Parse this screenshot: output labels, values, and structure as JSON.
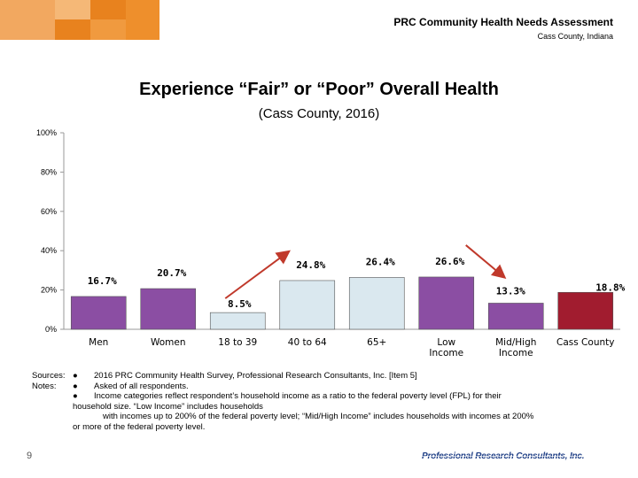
{
  "header": {
    "title": "PRC Community Health Needs Assessment",
    "subtitle": "Cass County, Indiana"
  },
  "colors": {
    "orange_accent": "#e8821e",
    "purple": "#8b4ea3",
    "light_blue": "#dae8ef",
    "dark_red": "#a11c2f",
    "arrow_red": "#c0392b",
    "logo_blue": "#1f3f86"
  },
  "chart_data": {
    "type": "bar",
    "title": "Experience “Fair” or “Poor” Overall Health",
    "subtitle": "(Cass County, 2016)",
    "categories": [
      "Men",
      "Women",
      "18 to 39",
      "40 to 64",
      "65+",
      "Low Income",
      "Mid/High Income",
      "Cass County"
    ],
    "values": [
      16.7,
      20.7,
      8.5,
      24.8,
      26.4,
      26.6,
      13.3,
      18.8
    ],
    "value_labels": [
      "16.7%",
      "20.7%",
      "8.5%",
      "24.8%",
      "26.4%",
      "26.6%",
      "13.3%",
      "18.8%"
    ],
    "bar_colors": [
      "#8b4ea3",
      "#8b4ea3",
      "#dae8ef",
      "#dae8ef",
      "#dae8ef",
      "#8b4ea3",
      "#8b4ea3",
      "#a11c2f"
    ],
    "ylim": [
      0,
      100
    ],
    "yticks": [
      0,
      20,
      40,
      60,
      80,
      100
    ],
    "ytick_labels": [
      "0%",
      "20%",
      "40%",
      "60%",
      "80%",
      "100%"
    ],
    "grid": false,
    "arrows": [
      {
        "from_category": "18 to 39",
        "to_category": "40 to 64",
        "direction": "up"
      },
      {
        "from_category": "Low Income",
        "to_category": "Mid/High Income",
        "direction": "down"
      }
    ]
  },
  "notes": {
    "sources_label": "Sources:",
    "notes_label": "Notes:",
    "bullet": "●",
    "line1": "2016 PRC Community Health Survey, Professional Research Consultants, Inc. [Item 5]",
    "line2": "Asked of all respondents.",
    "line3": "Income categories reflect respondent’s household income as a ratio to the federal poverty level (FPL) for their",
    "line4": "household size. “Low Income” includes households",
    "line5": "with incomes up to 200% of the federal poverty level; “Mid/High Income” includes households with incomes at 200%",
    "line6": "or more of the federal poverty level."
  },
  "footer": {
    "page_number": "9",
    "logo_text": "Professional Research Consultants, Inc."
  }
}
